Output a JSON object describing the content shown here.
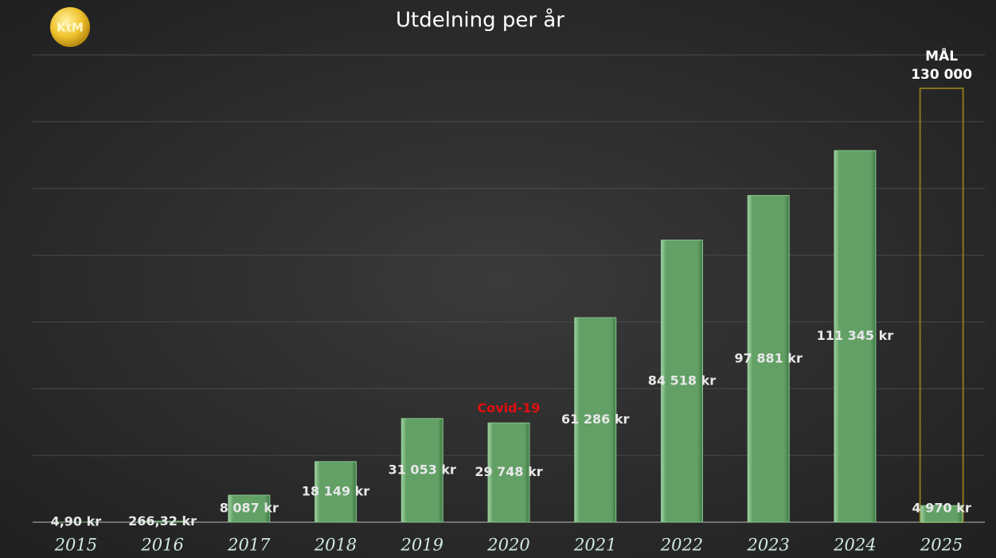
{
  "chart_data": {
    "type": "bar",
    "title": "Utdelning per år",
    "logo_text": "KtM",
    "categories": [
      "2015",
      "2016",
      "2017",
      "2018",
      "2019",
      "2020",
      "2021",
      "2022",
      "2023",
      "2024",
      "2025"
    ],
    "values": [
      4.9,
      266.32,
      8087,
      18149,
      31053,
      29748,
      61286,
      84518,
      97881,
      111345,
      4970
    ],
    "value_labels": [
      "4,90 kr",
      "266,32 kr",
      "8 087 kr",
      "18 149 kr",
      "31 053 kr",
      "29 748 kr",
      "61 286 kr",
      "84 518 kr",
      "97 881 kr",
      "111 345 kr",
      "4 970 kr"
    ],
    "color": "#62a066",
    "ylim": [
      0,
      140000
    ],
    "yticks": [
      0,
      20000,
      40000,
      60000,
      80000,
      100000,
      120000,
      140000
    ],
    "grid": true,
    "annotation": {
      "text": "Covid-19",
      "category": "2020",
      "color": "#e01010"
    },
    "goal": {
      "label": "MÅL",
      "value": 130000,
      "value_label": "130 000",
      "category": "2025",
      "color": "#8a7420"
    }
  }
}
